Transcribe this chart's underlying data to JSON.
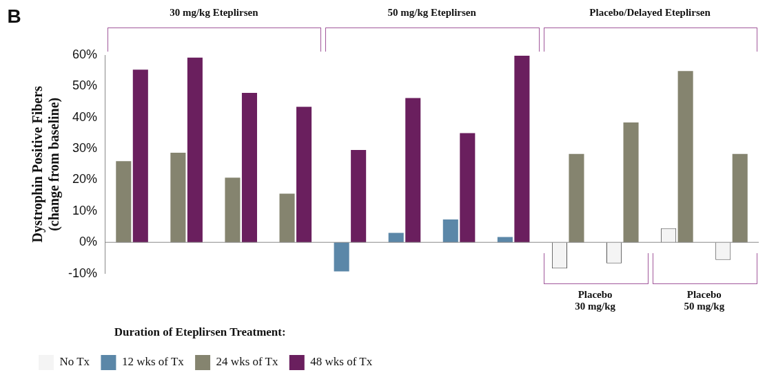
{
  "chart_data": {
    "type": "bar",
    "ylabel": "Dystrophin Positive Fibers\n(change from baseline)",
    "legend_title": "Duration of Eteplirsen Treatment:",
    "categories": [
      null,
      null,
      null,
      null,
      null,
      null,
      null,
      null,
      null,
      null,
      null,
      null
    ],
    "series": [
      {
        "name": "No Tx",
        "color": "#f4f4f4",
        "values": [
          null,
          null,
          null,
          null,
          null,
          null,
          null,
          null,
          -8.4,
          -6.7,
          4.5,
          -5.6
        ]
      },
      {
        "name": "12 wks of Tx",
        "color": "#5b87a8",
        "values": [
          null,
          null,
          null,
          null,
          -9.3,
          3.0,
          7.3,
          1.7,
          null,
          null,
          null,
          null
        ]
      },
      {
        "name": "24 wks of Tx",
        "color": "#85846f",
        "values": [
          26,
          28.7,
          20.7,
          15.6,
          null,
          null,
          null,
          null,
          28.3,
          38.4,
          54.9,
          28.3
        ]
      },
      {
        "name": "48 wks of Tx",
        "color": "#6a1f5e",
        "values": [
          55.3,
          59.2,
          47.9,
          43.4,
          29.6,
          46.2,
          35,
          59.8,
          null,
          null,
          null,
          null
        ]
      }
    ],
    "ylim": [
      -10,
      60
    ],
    "yticks": [
      {
        "value": -10,
        "label": "-10%"
      },
      {
        "value": 0,
        "label": "0%"
      },
      {
        "value": 10,
        "label": "10%"
      },
      {
        "value": 20,
        "label": "20%"
      },
      {
        "value": 30,
        "label": "30%"
      },
      {
        "value": 40,
        "label": "40%"
      },
      {
        "value": 50,
        "label": "50%"
      },
      {
        "value": 60,
        "label": "60%"
      }
    ],
    "grid": false,
    "legend": "bottom",
    "tick_labels": "y",
    "ref_lines": [
      {
        "axis": "y",
        "value": 0,
        "color": "#888888"
      }
    ],
    "annotations": [
      "B",
      "30 mg/kg Eteplirsen",
      "50 mg/kg Eteplirsen",
      "Placebo/Delayed Eteplirsen",
      "Placebo\n30 mg/kg",
      "Placebo\n50 mg/kg"
    ]
  }
}
